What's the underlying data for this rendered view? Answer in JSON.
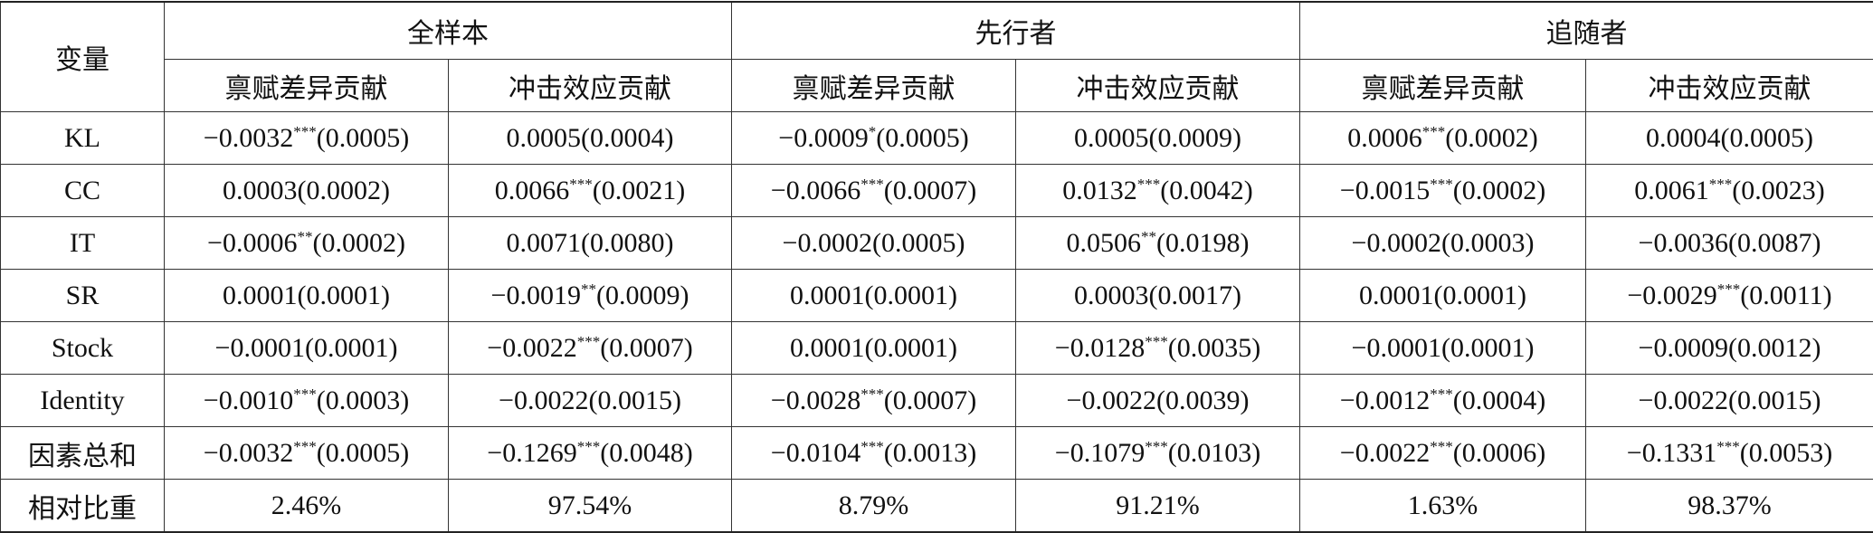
{
  "header": {
    "corner": "变量",
    "groups": [
      "全样本",
      "先行者",
      "追随者"
    ],
    "subheaders": [
      "禀赋差异贡献",
      "冲击效应贡献",
      "禀赋差异贡献",
      "冲击效应贡献",
      "禀赋差异贡献",
      "冲击效应贡献"
    ]
  },
  "table": {
    "rows": [
      {
        "label": "KL",
        "cells": [
          {
            "coef": "−0.0032",
            "stars": "***",
            "se": "(0.0005)"
          },
          {
            "coef": "0.0005",
            "se": "(0.0004)"
          },
          {
            "coef": "−0.0009",
            "stars": "*",
            "se": "(0.0005)"
          },
          {
            "coef": "0.0005",
            "se": "(0.0009)"
          },
          {
            "coef": "0.0006",
            "stars": "***",
            "se": "(0.0002)"
          },
          {
            "coef": "0.0004",
            "se": "(0.0005)"
          }
        ]
      },
      {
        "label": "CC",
        "cells": [
          {
            "coef": "0.0003",
            "se": "(0.0002)"
          },
          {
            "coef": "0.0066",
            "stars": "***",
            "se": "(0.0021)"
          },
          {
            "coef": "−0.0066",
            "stars": "***",
            "se": "(0.0007)"
          },
          {
            "coef": "0.0132",
            "stars": "***",
            "se": "(0.0042)"
          },
          {
            "coef": "−0.0015",
            "stars": "***",
            "se": "(0.0002)"
          },
          {
            "coef": "0.0061",
            "stars": "***",
            "se": "(0.0023)"
          }
        ]
      },
      {
        "label": "IT",
        "cells": [
          {
            "coef": "−0.0006",
            "stars": "**",
            "se": "(0.0002)"
          },
          {
            "coef": "0.0071",
            "se": "(0.0080)"
          },
          {
            "coef": "−0.0002",
            "se": "(0.0005)"
          },
          {
            "coef": "0.0506",
            "stars": "**",
            "se": "(0.0198)"
          },
          {
            "coef": "−0.0002",
            "se": "(0.0003)"
          },
          {
            "coef": "−0.0036",
            "se": "(0.0087)"
          }
        ]
      },
      {
        "label": "SR",
        "cells": [
          {
            "coef": "0.0001",
            "se": "(0.0001)"
          },
          {
            "coef": "−0.0019",
            "stars": "**",
            "se": "(0.0009)"
          },
          {
            "coef": "0.0001",
            "se": "(0.0001)"
          },
          {
            "coef": "0.0003",
            "se": "(0.0017)"
          },
          {
            "coef": "0.0001",
            "se": "(0.0001)"
          },
          {
            "coef": "−0.0029",
            "stars": "***",
            "se": "(0.0011)"
          }
        ]
      },
      {
        "label": "Stock",
        "cells": [
          {
            "coef": "−0.0001",
            "se": "(0.0001)"
          },
          {
            "coef": "−0.0022",
            "stars": "***",
            "se": "(0.0007)"
          },
          {
            "coef": "0.0001",
            "se": "(0.0001)"
          },
          {
            "coef": "−0.0128",
            "stars": "***",
            "se": "(0.0035)"
          },
          {
            "coef": "−0.0001",
            "se": "(0.0001)"
          },
          {
            "coef": "−0.0009",
            "se": "(0.0012)"
          }
        ]
      },
      {
        "label": "Identity",
        "cells": [
          {
            "coef": "−0.0010",
            "stars": "***",
            "se": "(0.0003)"
          },
          {
            "coef": "−0.0022",
            "se": "(0.0015)"
          },
          {
            "coef": "−0.0028",
            "stars": "***",
            "se": "(0.0007)"
          },
          {
            "coef": "−0.0022",
            "se": "(0.0039)"
          },
          {
            "coef": "−0.0012",
            "stars": "***",
            "se": "(0.0004)"
          },
          {
            "coef": "−0.0022",
            "se": "(0.0015)"
          }
        ]
      },
      {
        "label": "因素总和",
        "cells": [
          {
            "coef": "−0.0032",
            "stars": "***",
            "se": "(0.0005)"
          },
          {
            "coef": "−0.1269",
            "stars": "***",
            "se": "(0.0048)"
          },
          {
            "coef": "−0.0104",
            "stars": "***",
            "se": "(0.0013)"
          },
          {
            "coef": "−0.1079",
            "stars": "***",
            "se": "(0.0103)"
          },
          {
            "coef": "−0.0022",
            "stars": "***",
            "se": "(0.0006)"
          },
          {
            "coef": "−0.1331",
            "stars": "***",
            "se": "(0.0053)"
          }
        ]
      },
      {
        "label": "相对比重",
        "cells": [
          {
            "coef": "2.46%"
          },
          {
            "coef": "97.54%"
          },
          {
            "coef": "8.79%"
          },
          {
            "coef": "91.21%"
          },
          {
            "coef": "1.63%"
          },
          {
            "coef": "98.37%"
          }
        ]
      }
    ]
  }
}
